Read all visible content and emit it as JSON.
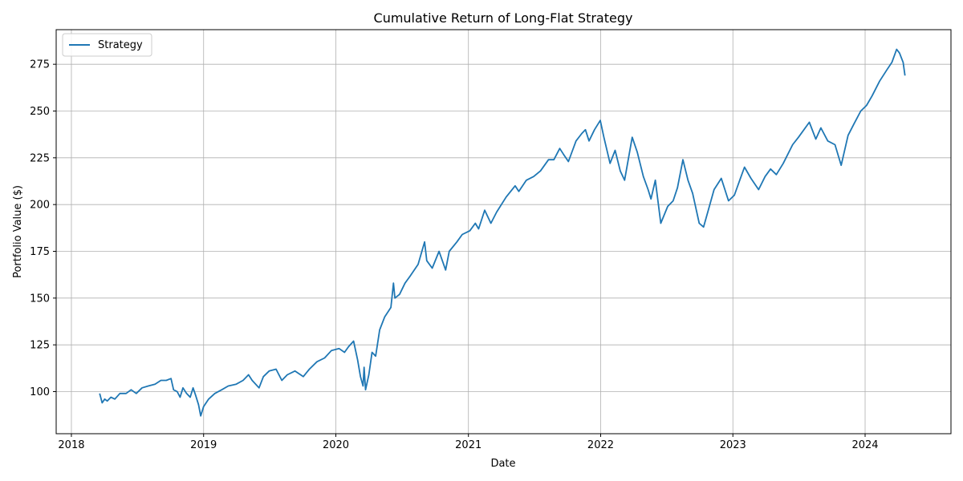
{
  "chart_data": {
    "type": "line",
    "title": "Cumulative Return of Long-Flat Strategy",
    "xlabel": "Date",
    "ylabel": "Portfolio Value ($)",
    "x_ticks": [
      "2018",
      "2019",
      "2020",
      "2021",
      "2022",
      "2023",
      "2024"
    ],
    "y_ticks": [
      100,
      125,
      150,
      175,
      200,
      225,
      250,
      275
    ],
    "xlim": [
      "2017-11-20",
      "2024-08-25"
    ],
    "ylim": [
      77.5,
      293.5
    ],
    "grid": true,
    "legend_position": "upper-left",
    "series": [
      {
        "name": "Strategy",
        "color": "#1f77b4",
        "points": [
          [
            "2018-03-20",
            99
          ],
          [
            "2018-03-27",
            94
          ],
          [
            "2018-04-03",
            96
          ],
          [
            "2018-04-10",
            95
          ],
          [
            "2018-04-20",
            97
          ],
          [
            "2018-05-01",
            96
          ],
          [
            "2018-05-15",
            99
          ],
          [
            "2018-06-01",
            99
          ],
          [
            "2018-06-15",
            101
          ],
          [
            "2018-06-29",
            99
          ],
          [
            "2018-07-15",
            102
          ],
          [
            "2018-08-01",
            103
          ],
          [
            "2018-08-20",
            104
          ],
          [
            "2018-09-05",
            106
          ],
          [
            "2018-09-20",
            106
          ],
          [
            "2018-10-03",
            107
          ],
          [
            "2018-10-10",
            101
          ],
          [
            "2018-10-20",
            100
          ],
          [
            "2018-10-28",
            97
          ],
          [
            "2018-11-05",
            102
          ],
          [
            "2018-11-15",
            99
          ],
          [
            "2018-11-25",
            97
          ],
          [
            "2018-12-03",
            102
          ],
          [
            "2018-12-10",
            98
          ],
          [
            "2018-12-18",
            93
          ],
          [
            "2018-12-24",
            87
          ],
          [
            "2019-01-01",
            92
          ],
          [
            "2019-01-15",
            96
          ],
          [
            "2019-02-01",
            99
          ],
          [
            "2019-02-20",
            101
          ],
          [
            "2019-03-10",
            103
          ],
          [
            "2019-04-01",
            104
          ],
          [
            "2019-04-20",
            106
          ],
          [
            "2019-05-05",
            109
          ],
          [
            "2019-05-15",
            106
          ],
          [
            "2019-06-03",
            102
          ],
          [
            "2019-06-15",
            108
          ],
          [
            "2019-07-01",
            111
          ],
          [
            "2019-07-20",
            112
          ],
          [
            "2019-08-05",
            106
          ],
          [
            "2019-08-20",
            109
          ],
          [
            "2019-09-10",
            111
          ],
          [
            "2019-10-03",
            108
          ],
          [
            "2019-10-20",
            112
          ],
          [
            "2019-11-10",
            116
          ],
          [
            "2019-12-01",
            118
          ],
          [
            "2019-12-20",
            122
          ],
          [
            "2020-01-10",
            123
          ],
          [
            "2020-01-25",
            121
          ],
          [
            "2020-02-05",
            124
          ],
          [
            "2020-02-19",
            127
          ],
          [
            "2020-03-01",
            117
          ],
          [
            "2020-03-09",
            108
          ],
          [
            "2020-03-16",
            103
          ],
          [
            "2020-03-19",
            113
          ],
          [
            "2020-03-23",
            101
          ],
          [
            "2020-04-01",
            109
          ],
          [
            "2020-04-10",
            121
          ],
          [
            "2020-04-20",
            119
          ],
          [
            "2020-05-01",
            133
          ],
          [
            "2020-05-15",
            140
          ],
          [
            "2020-06-01",
            145
          ],
          [
            "2020-06-08",
            158
          ],
          [
            "2020-06-12",
            150
          ],
          [
            "2020-06-25",
            152
          ],
          [
            "2020-07-10",
            158
          ],
          [
            "2020-07-25",
            162
          ],
          [
            "2020-08-15",
            168
          ],
          [
            "2020-09-02",
            180
          ],
          [
            "2020-09-08",
            170
          ],
          [
            "2020-09-23",
            166
          ],
          [
            "2020-10-12",
            175
          ],
          [
            "2020-10-30",
            165
          ],
          [
            "2020-11-09",
            175
          ],
          [
            "2020-11-30",
            180
          ],
          [
            "2020-12-15",
            184
          ],
          [
            "2021-01-05",
            186
          ],
          [
            "2021-01-20",
            190
          ],
          [
            "2021-01-29",
            187
          ],
          [
            "2021-02-15",
            197
          ],
          [
            "2021-03-04",
            190
          ],
          [
            "2021-03-20",
            196
          ],
          [
            "2021-04-15",
            204
          ],
          [
            "2021-05-10",
            210
          ],
          [
            "2021-05-20",
            207
          ],
          [
            "2021-06-10",
            213
          ],
          [
            "2021-06-30",
            215
          ],
          [
            "2021-07-19",
            218
          ],
          [
            "2021-08-10",
            224
          ],
          [
            "2021-08-25",
            224
          ],
          [
            "2021-09-10",
            230
          ],
          [
            "2021-09-20",
            227
          ],
          [
            "2021-10-04",
            223
          ],
          [
            "2021-10-25",
            234
          ],
          [
            "2021-11-10",
            238
          ],
          [
            "2021-11-20",
            240
          ],
          [
            "2021-11-30",
            234
          ],
          [
            "2021-12-15",
            240
          ],
          [
            "2021-12-31",
            245
          ],
          [
            "2022-01-10",
            236
          ],
          [
            "2022-01-27",
            222
          ],
          [
            "2022-02-10",
            229
          ],
          [
            "2022-02-24",
            218
          ],
          [
            "2022-03-08",
            213
          ],
          [
            "2022-03-29",
            236
          ],
          [
            "2022-04-12",
            228
          ],
          [
            "2022-04-29",
            215
          ],
          [
            "2022-05-12",
            208
          ],
          [
            "2022-05-20",
            203
          ],
          [
            "2022-06-01",
            213
          ],
          [
            "2022-06-16",
            190
          ],
          [
            "2022-07-05",
            199
          ],
          [
            "2022-07-20",
            202
          ],
          [
            "2022-08-01",
            209
          ],
          [
            "2022-08-16",
            224
          ],
          [
            "2022-08-30",
            213
          ],
          [
            "2022-09-12",
            206
          ],
          [
            "2022-09-30",
            190
          ],
          [
            "2022-10-12",
            188
          ],
          [
            "2022-10-25",
            197
          ],
          [
            "2022-11-10",
            208
          ],
          [
            "2022-11-30",
            214
          ],
          [
            "2022-12-20",
            202
          ],
          [
            "2023-01-05",
            205
          ],
          [
            "2023-01-20",
            213
          ],
          [
            "2023-02-02",
            220
          ],
          [
            "2023-02-20",
            214
          ],
          [
            "2023-03-13",
            208
          ],
          [
            "2023-03-31",
            215
          ],
          [
            "2023-04-15",
            219
          ],
          [
            "2023-05-01",
            216
          ],
          [
            "2023-05-20",
            222
          ],
          [
            "2023-06-15",
            232
          ],
          [
            "2023-07-01",
            236
          ],
          [
            "2023-07-31",
            244
          ],
          [
            "2023-08-18",
            235
          ],
          [
            "2023-09-01",
            241
          ],
          [
            "2023-09-20",
            234
          ],
          [
            "2023-10-10",
            232
          ],
          [
            "2023-10-27",
            221
          ],
          [
            "2023-11-15",
            237
          ],
          [
            "2023-12-01",
            243
          ],
          [
            "2023-12-20",
            250
          ],
          [
            "2024-01-05",
            253
          ],
          [
            "2024-01-20",
            258
          ],
          [
            "2024-02-10",
            266
          ],
          [
            "2024-03-01",
            272
          ],
          [
            "2024-03-15",
            276
          ],
          [
            "2024-03-28",
            283
          ],
          [
            "2024-04-05",
            281
          ],
          [
            "2024-04-15",
            276
          ],
          [
            "2024-04-20",
            269
          ]
        ]
      }
    ]
  }
}
